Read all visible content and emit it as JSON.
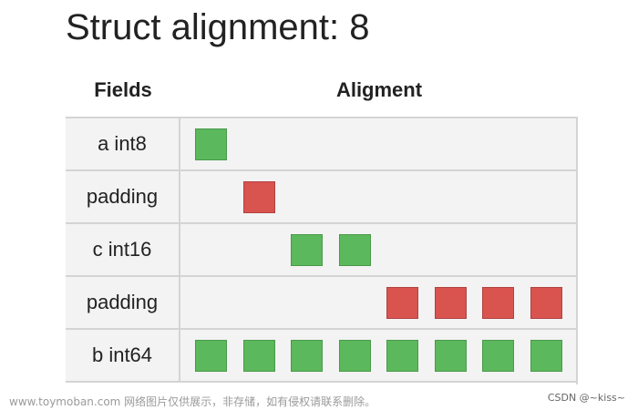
{
  "title": "Struct alignment: 8",
  "headers": {
    "fields": "Fields",
    "alignment": "Aligment"
  },
  "colors": {
    "data": "#5cb85c",
    "padding": "#d9534f",
    "row_bg": "#f3f3f3",
    "grid": "#d4d4d4"
  },
  "rows": [
    {
      "label": "a int8",
      "kind": "data",
      "start": 0,
      "count": 1
    },
    {
      "label": "padding",
      "kind": "padding",
      "start": 1,
      "count": 1
    },
    {
      "label": "c int16",
      "kind": "data",
      "start": 2,
      "count": 2
    },
    {
      "label": "padding",
      "kind": "padding",
      "start": 4,
      "count": 4
    },
    {
      "label": "b int64",
      "kind": "data",
      "start": 0,
      "count": 8
    }
  ],
  "watermark": {
    "left": "www.toymoban.com 网络图片仅供展示，非存储，如有侵权请联系删除。",
    "right": "CSDN @~kiss~"
  }
}
